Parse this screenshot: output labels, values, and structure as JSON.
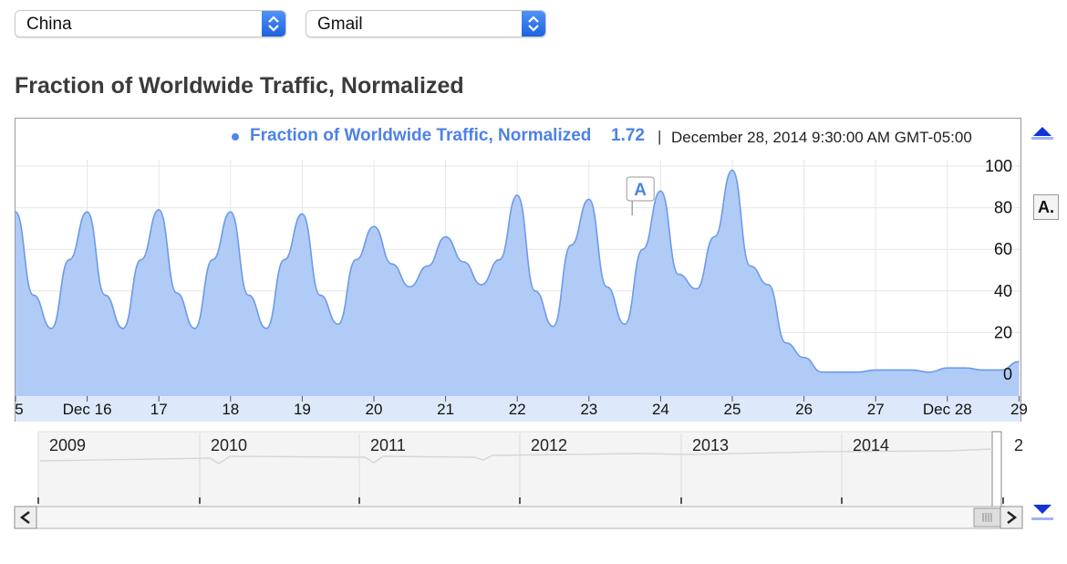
{
  "controls": {
    "country": "China",
    "product": "Gmail"
  },
  "heading": "Fraction of Worldwide Traffic, Normalized",
  "legend": {
    "series_label": "Fraction of Worldwide Traffic, Normalized",
    "value": "1.72",
    "separator": "|",
    "date": "December 28, 2014 9:30:00 AM GMT-05:00"
  },
  "annotation": {
    "label": "A",
    "side_label": "A."
  },
  "navigator": {
    "years": [
      "2009",
      "2010",
      "2011",
      "2012",
      "2013",
      "2014",
      "2"
    ]
  },
  "colors": {
    "fill": "#b0cbf6",
    "line": "#6d9ae8",
    "accent": "#4d82e6"
  },
  "chart_data": {
    "type": "area",
    "x_tick_labels": [
      "5",
      "Dec 16",
      "17",
      "18",
      "19",
      "20",
      "21",
      "22",
      "23",
      "24",
      "25",
      "26",
      "27",
      "Dec 28",
      "29"
    ],
    "y_tick_labels": [
      "0",
      "20",
      "40",
      "60",
      "80",
      "100"
    ],
    "ylim": [
      0,
      100
    ],
    "xlim": [
      "2014-12-15",
      "2014-12-29"
    ],
    "grid": true,
    "annotations": [
      {
        "label": "A",
        "x": "2014-12-24"
      }
    ],
    "series": [
      {
        "name": "Fraction of Worldwide Traffic, Normalized",
        "x": [
          "2014-12-15 00:00",
          "2014-12-15 06:00",
          "2014-12-15 12:00",
          "2014-12-15 18:00",
          "2014-12-16 00:00",
          "2014-12-16 06:00",
          "2014-12-16 12:00",
          "2014-12-16 18:00",
          "2014-12-17 00:00",
          "2014-12-17 06:00",
          "2014-12-17 12:00",
          "2014-12-17 18:00",
          "2014-12-18 00:00",
          "2014-12-18 06:00",
          "2014-12-18 12:00",
          "2014-12-18 18:00",
          "2014-12-19 00:00",
          "2014-12-19 06:00",
          "2014-12-19 12:00",
          "2014-12-19 18:00",
          "2014-12-20 00:00",
          "2014-12-20 06:00",
          "2014-12-20 12:00",
          "2014-12-20 18:00",
          "2014-12-21 00:00",
          "2014-12-21 06:00",
          "2014-12-21 12:00",
          "2014-12-21 18:00",
          "2014-12-22 00:00",
          "2014-12-22 06:00",
          "2014-12-22 12:00",
          "2014-12-22 18:00",
          "2014-12-23 00:00",
          "2014-12-23 06:00",
          "2014-12-23 12:00",
          "2014-12-23 18:00",
          "2014-12-24 00:00",
          "2014-12-24 06:00",
          "2014-12-24 12:00",
          "2014-12-24 18:00",
          "2014-12-25 00:00",
          "2014-12-25 06:00",
          "2014-12-25 12:00",
          "2014-12-25 18:00",
          "2014-12-26 00:00",
          "2014-12-26 06:00",
          "2014-12-26 12:00",
          "2014-12-26 18:00",
          "2014-12-27 00:00",
          "2014-12-27 06:00",
          "2014-12-27 12:00",
          "2014-12-27 18:00",
          "2014-12-28 00:00",
          "2014-12-28 06:00",
          "2014-12-28 12:00",
          "2014-12-28 18:00",
          "2014-12-29 00:00"
        ],
        "values": [
          78,
          38,
          22,
          55,
          78,
          38,
          22,
          55,
          79,
          39,
          22,
          55,
          78,
          38,
          22,
          55,
          77,
          38,
          24,
          55,
          71,
          53,
          42,
          52,
          66,
          54,
          43,
          55,
          86,
          40,
          23,
          62,
          84,
          42,
          24,
          60,
          88,
          48,
          41,
          66,
          98,
          52,
          43,
          15,
          8,
          1,
          1,
          1,
          2,
          2,
          2,
          1,
          3,
          3,
          2,
          2,
          6
        ]
      }
    ]
  }
}
